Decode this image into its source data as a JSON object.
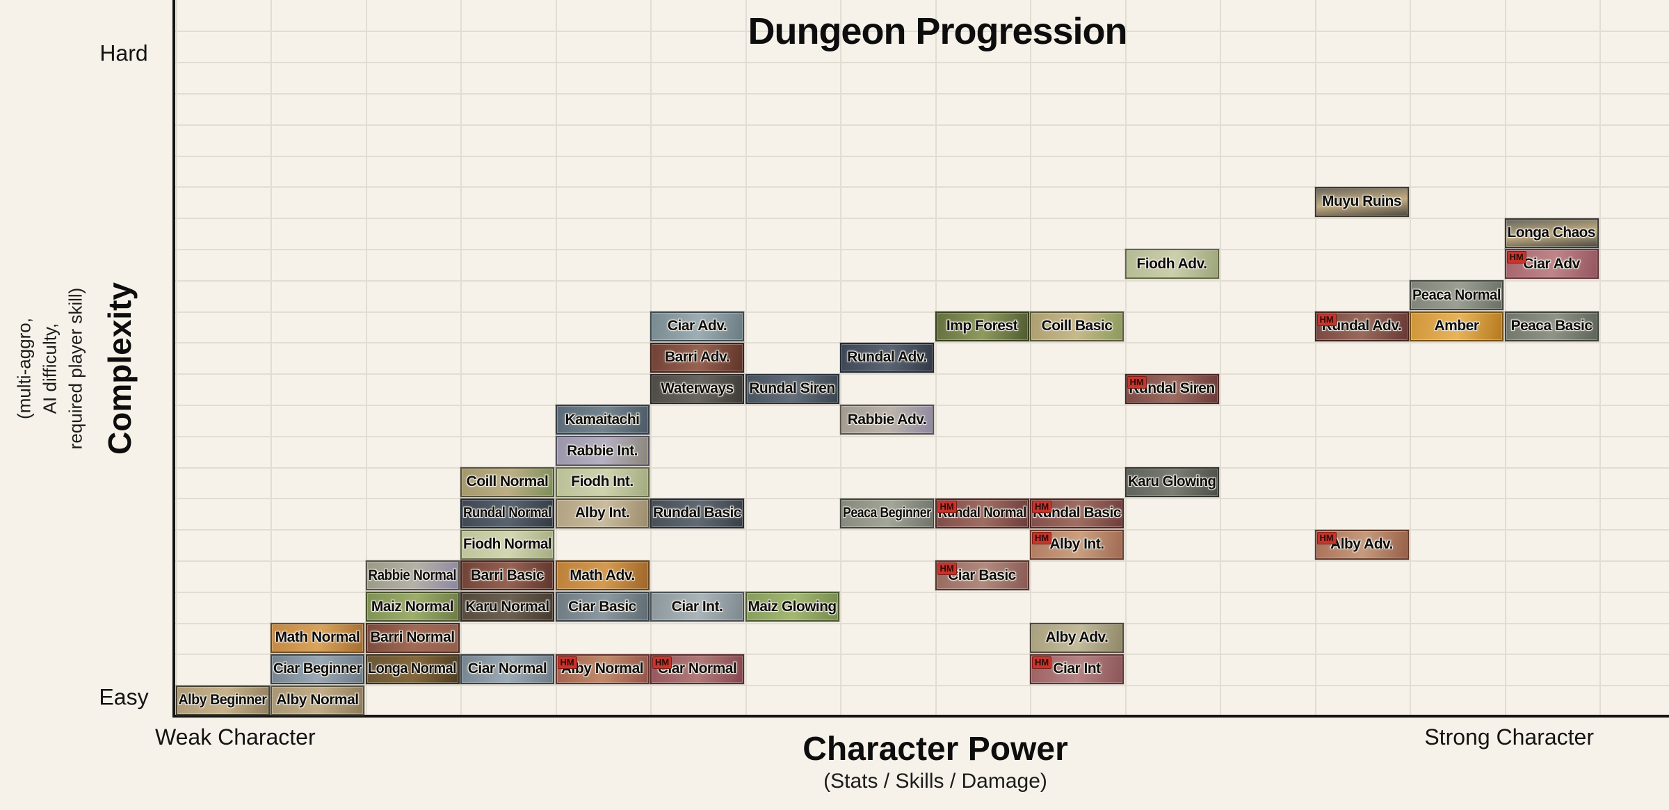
{
  "title": "Dungeon Progression",
  "x_axis": {
    "label": "Character Power",
    "sublabel": "(Stats / Skills / Damage)",
    "min_label": "Weak Character",
    "max_label": "Strong Character"
  },
  "y_axis": {
    "label": "Complexity",
    "sublabel_lines": [
      "(multi-aggro,",
      "AI difficulty,",
      "required player skill)"
    ],
    "min_label": "Easy",
    "max_label": "Hard"
  },
  "hm_badge_label": "HM",
  "colors": {
    "background": "#f7f2e9",
    "gridline": "#e2ddd3",
    "axis": "#141414",
    "tile_text": "#0d0d0d",
    "hm_badge_bg": "#c5352c",
    "hm_badge_border": "#7e1d18",
    "hm_badge_text": "#2e0b08"
  },
  "chart_data": {
    "type": "scatter",
    "title": "Dungeon Progression",
    "xlabel": "Character Power (Stats / Skills / Damage)",
    "ylabel": "Complexity (multi-aggro, AI difficulty, required player skill)",
    "x_range_labels": [
      "Weak Character",
      "Strong Character"
    ],
    "y_range_labels": [
      "Easy",
      "Hard"
    ],
    "x_unit": "grid column, 0 = weakest character needed",
    "y_unit": "grid row, 0 = easiest",
    "grid": true,
    "points": [
      {
        "label": "Alby Beginner",
        "col": 0,
        "row": 0,
        "hm": false,
        "colors": [
          "#ad9a77",
          "#c7b28c",
          "#93805f"
        ],
        "border": "#46422f",
        "dir": 100
      },
      {
        "label": "Alby Normal",
        "col": 1,
        "row": 0,
        "hm": false,
        "colors": [
          "#a89573",
          "#c2ad88",
          "#8e7b5a"
        ],
        "border": "#56523f",
        "dir": 100
      },
      {
        "label": "Ciar Beginner",
        "col": 1,
        "row": 1,
        "hm": false,
        "colors": [
          "#74828e",
          "#9aa9b4",
          "#6d7b87"
        ],
        "border": "#3c4246",
        "dir": 100
      },
      {
        "label": "Longa Normal",
        "col": 2,
        "row": 1,
        "hm": false,
        "colors": [
          "#6b5635",
          "#85683c",
          "#4e3d24"
        ],
        "border": "#3a3020",
        "dir": 100
      },
      {
        "label": "Ciar Normal",
        "col": 3,
        "row": 1,
        "hm": false,
        "colors": [
          "#76848f",
          "#9cabb6",
          "#6f7d88"
        ],
        "border": "#3c4246",
        "dir": 100
      },
      {
        "label": "Alby Normal",
        "col": 4,
        "row": 1,
        "hm": true,
        "colors": [
          "#a3614f",
          "#c08a6a",
          "#94544a"
        ],
        "border": "#63312a",
        "dir": 100
      },
      {
        "label": "Ciar Normal",
        "col": 5,
        "row": 1,
        "hm": true,
        "colors": [
          "#95565c",
          "#b07a78",
          "#86474f"
        ],
        "border": "#5c2e31",
        "dir": 100
      },
      {
        "label": "Ciar Int",
        "col": 9,
        "row": 1,
        "hm": true,
        "colors": [
          "#9c6263",
          "#b58384",
          "#8d5557"
        ],
        "border": "#5e3435",
        "dir": 100
      },
      {
        "label": "Math Normal",
        "col": 1,
        "row": 2,
        "hm": false,
        "colors": [
          "#c38742",
          "#d9a45c",
          "#a56d31"
        ],
        "border": "#6b4a22",
        "dir": 100
      },
      {
        "label": "Barri Normal",
        "col": 2,
        "row": 2,
        "hm": false,
        "colors": [
          "#7c4a3b",
          "#a06a55",
          "#93604e"
        ],
        "border": "#4a2b21",
        "dir": 100
      },
      {
        "label": "Alby Adv.",
        "col": 9,
        "row": 2,
        "hm": false,
        "colors": [
          "#a9a07f",
          "#c3bb9b",
          "#8f8868"
        ],
        "border": "#4c4a3a",
        "dir": 100
      },
      {
        "label": "Maiz Normal",
        "col": 2,
        "row": 3,
        "hm": false,
        "colors": [
          "#7f9154",
          "#9cad6c",
          "#6d7c45"
        ],
        "border": "#49532c",
        "dir": 100
      },
      {
        "label": "Karu Normal",
        "col": 3,
        "row": 3,
        "hm": false,
        "colors": [
          "#55493c",
          "#6c6052",
          "#453a2e"
        ],
        "border": "#2f2921",
        "dir": 100
      },
      {
        "label": "Ciar Basic",
        "col": 4,
        "row": 3,
        "hm": false,
        "colors": [
          "#6d7a81",
          "#8c99a0",
          "#5f6c73"
        ],
        "border": "#3a4247",
        "dir": 100
      },
      {
        "label": "Ciar Int.",
        "col": 5,
        "row": 3,
        "hm": false,
        "colors": [
          "#8c979c",
          "#aab5ba",
          "#7e898e"
        ],
        "border": "#4a5257",
        "dir": 100
      },
      {
        "label": "Maiz Glowing",
        "col": 6,
        "row": 3,
        "hm": false,
        "colors": [
          "#869c5c",
          "#a3b873",
          "#74894c"
        ],
        "border": "#4c5a30",
        "dir": 100
      },
      {
        "label": "Rabbie Normal",
        "col": 2,
        "row": 4,
        "hm": false,
        "colors": [
          "#9a9a85",
          "#b5b1a8",
          "#8d87a0"
        ],
        "border": "#55534a",
        "dir": 100
      },
      {
        "label": "Barri Basic",
        "col": 3,
        "row": 4,
        "hm": false,
        "colors": [
          "#6f4236",
          "#956253",
          "#5f352b"
        ],
        "border": "#40241d",
        "dir": 100
      },
      {
        "label": "Math Adv.",
        "col": 4,
        "row": 4,
        "hm": false,
        "colors": [
          "#bd8038",
          "#d49a51",
          "#9e6628"
        ],
        "border": "#68451f",
        "dir": 100
      },
      {
        "label": "Ciar Basic",
        "col": 8,
        "row": 4,
        "hm": true,
        "colors": [
          "#97695f",
          "#b08a7e",
          "#885a52"
        ],
        "border": "#5a342e",
        "dir": 100
      },
      {
        "label": "Fiodh Normal",
        "col": 3,
        "row": 5,
        "hm": false,
        "colors": [
          "#bcc299",
          "#d2d7b2",
          "#a6ad82"
        ],
        "border": "#676d4b",
        "dir": 100
      },
      {
        "label": "Alby Int.",
        "col": 9,
        "row": 5,
        "hm": true,
        "colors": [
          "#b07b61",
          "#caa081",
          "#a06a52"
        ],
        "border": "#693f2f",
        "dir": 100
      },
      {
        "label": "Alby Adv.",
        "col": 12,
        "row": 5,
        "hm": true,
        "colors": [
          "#aa7058",
          "#c69a7c",
          "#976049"
        ],
        "border": "#643a2b",
        "dir": 100
      },
      {
        "label": "Rundal Normal",
        "col": 3,
        "row": 6,
        "hm": false,
        "colors": [
          "#3e4651",
          "#59636f",
          "#333a44"
        ],
        "border": "#23282f",
        "dir": 100
      },
      {
        "label": "Alby Int.",
        "col": 4,
        "row": 6,
        "hm": false,
        "colors": [
          "#b2a284",
          "#c9bb9d",
          "#9c8c6e"
        ],
        "border": "#5e5441",
        "dir": 100
      },
      {
        "label": "Rundal Basic",
        "col": 5,
        "row": 6,
        "hm": false,
        "colors": [
          "#454c54",
          "#616a73",
          "#383f47"
        ],
        "border": "#272c32",
        "dir": 100
      },
      {
        "label": "Peaca Beginner",
        "col": 7,
        "row": 6,
        "hm": false,
        "colors": [
          "#85887b",
          "#a3a698",
          "#70746a"
        ],
        "border": "#43463d",
        "dir": 100
      },
      {
        "label": "Rundal Normal",
        "col": 8,
        "row": 6,
        "hm": true,
        "colors": [
          "#7e4a47",
          "#9e6d62",
          "#6e3c3a"
        ],
        "border": "#4a2825",
        "dir": 100
      },
      {
        "label": "Rundal Basic",
        "col": 9,
        "row": 6,
        "hm": true,
        "colors": [
          "#7f4b48",
          "#9f6e63",
          "#6f3d3b"
        ],
        "border": "#4a2825",
        "dir": 100
      },
      {
        "label": "Coill Normal",
        "col": 3,
        "row": 7,
        "hm": false,
        "colors": [
          "#a3976c",
          "#bcae85",
          "#7e8f59"
        ],
        "border": "#57543a",
        "dir": 100
      },
      {
        "label": "Fiodh Int.",
        "col": 4,
        "row": 7,
        "hm": false,
        "colors": [
          "#b9bf96",
          "#cfd4af",
          "#a3aa7f"
        ],
        "border": "#646a48",
        "dir": 100
      },
      {
        "label": "Karu Glowing",
        "col": 10,
        "row": 7,
        "hm": false,
        "colors": [
          "#5e615a",
          "#7b7e74",
          "#4c4f48"
        ],
        "border": "#33352f",
        "dir": 100
      },
      {
        "label": "Rabbie Int.",
        "col": 4,
        "row": 8,
        "hm": false,
        "colors": [
          "#9a95a8",
          "#b5b0c2",
          "#8a8578"
        ],
        "border": "#54505f",
        "dir": 100
      },
      {
        "label": "Kamaitachi",
        "col": 4,
        "row": 9,
        "hm": false,
        "colors": [
          "#5a6a77",
          "#75858f",
          "#4b5a66"
        ],
        "border": "#333d45",
        "dir": 100
      },
      {
        "label": "Rabbie Adv.",
        "col": 7,
        "row": 9,
        "hm": false,
        "colors": [
          "#a29b90",
          "#bcb4ab",
          "#8f88a2"
        ],
        "border": "#5a564d",
        "dir": 100
      },
      {
        "label": "Waterways",
        "col": 5,
        "row": 10,
        "hm": false,
        "colors": [
          "#4e4b46",
          "#696661",
          "#3e3b37"
        ],
        "border": "#2b2926",
        "dir": 100
      },
      {
        "label": "Rundal Siren",
        "col": 6,
        "row": 10,
        "hm": false,
        "colors": [
          "#47525e",
          "#636e7a",
          "#3a454f"
        ],
        "border": "#28303a",
        "dir": 100
      },
      {
        "label": "Rundal Siren",
        "col": 10,
        "row": 10,
        "hm": true,
        "colors": [
          "#7b4845",
          "#9b6b60",
          "#6b3a38"
        ],
        "border": "#472624",
        "dir": 100
      },
      {
        "label": "Barri Adv.",
        "col": 5,
        "row": 11,
        "hm": false,
        "colors": [
          "#704136",
          "#966252",
          "#603429"
        ],
        "border": "#40241c",
        "dir": 100
      },
      {
        "label": "Rundal Adv.",
        "col": 7,
        "row": 11,
        "hm": false,
        "colors": [
          "#3d4655",
          "#5a6473",
          "#323a47"
        ],
        "border": "#232935",
        "dir": 100
      },
      {
        "label": "Ciar Adv.",
        "col": 5,
        "row": 12,
        "hm": false,
        "colors": [
          "#77898f",
          "#9dafb5",
          "#6a7c82"
        ],
        "border": "#3e4a4f",
        "dir": 100
      },
      {
        "label": "Imp Forest",
        "col": 8,
        "row": 12,
        "hm": false,
        "colors": [
          "#636f3e",
          "#8f9a5f",
          "#4f5a30"
        ],
        "border": "#36401f",
        "dir": 100
      },
      {
        "label": "Coill Basic",
        "col": 9,
        "row": 12,
        "hm": false,
        "colors": [
          "#ad9f70",
          "#c6b98a",
          "#8b9a5e"
        ],
        "border": "#5c593c",
        "dir": 100
      },
      {
        "label": "Rundal Adv.",
        "col": 12,
        "row": 12,
        "hm": true,
        "colors": [
          "#784641",
          "#986a5c",
          "#683834"
        ],
        "border": "#452522",
        "dir": 100
      },
      {
        "label": "Amber",
        "col": 13,
        "row": 12,
        "hm": false,
        "colors": [
          "#d0953a",
          "#e7b45a",
          "#b5791f"
        ],
        "border": "#7a5214",
        "dir": 100
      },
      {
        "label": "Peaca Basic",
        "col": 14,
        "row": 12,
        "hm": false,
        "colors": [
          "#71766a",
          "#8f9487",
          "#5e6358"
        ],
        "border": "#3e4239",
        "dir": 100
      },
      {
        "label": "Peaca Normal",
        "col": 13,
        "row": 13,
        "hm": false,
        "colors": [
          "#7e8277",
          "#9ca094",
          "#6a6f64"
        ],
        "border": "#44473e",
        "dir": 100
      },
      {
        "label": "Fiodh Adv.",
        "col": 10,
        "row": 14,
        "hm": false,
        "colors": [
          "#b4ba92",
          "#cbd0ab",
          "#9ea57b"
        ],
        "border": "#616745",
        "dir": 100
      },
      {
        "label": "Ciar Adv",
        "col": 14,
        "row": 14,
        "hm": true,
        "colors": [
          "#a5646b",
          "#bf8589",
          "#94555f"
        ],
        "border": "#61353a",
        "dir": 100
      },
      {
        "label": "Longa Chaos",
        "col": 14,
        "row": 15,
        "hm": false,
        "colors": [
          "#68675f",
          "#c0ab80",
          "#4b4a44"
        ],
        "border": "#3a3933",
        "dir": 175
      },
      {
        "label": "Muyu Ruins",
        "col": 12,
        "row": 16,
        "hm": false,
        "colors": [
          "#6e675c",
          "#c3ad82",
          "#4f4a42"
        ],
        "border": "#3c3830",
        "dir": 175
      }
    ]
  }
}
